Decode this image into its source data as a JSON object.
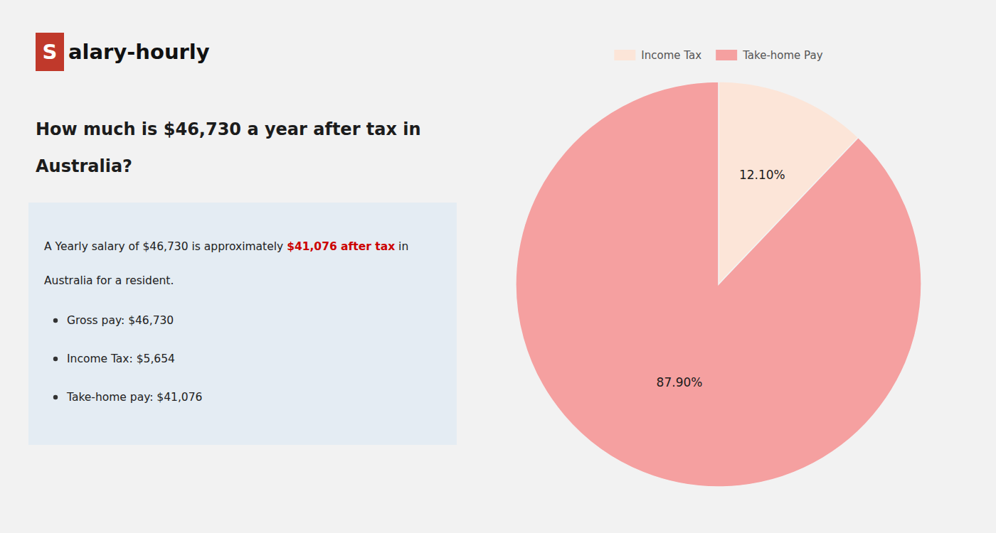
{
  "chart_data": {
    "type": "pie",
    "title": [
      "How much is $46,730 a year after tax in",
      "Australia?"
    ],
    "annotations": [
      {
        "text": "S"
      },
      {
        "text": "alary-hourly"
      },
      {
        "text": "A Yearly salary of $46,730 is approximately "
      },
      {
        "text": "$41,076 after tax",
        "color": "#cc0000"
      },
      {
        "text": " in"
      },
      {
        "text": "Australia for a resident."
      },
      {
        "text": "Gross pay: $46,730"
      },
      {
        "text": "Income Tax: $5,654"
      },
      {
        "text": "Take-home pay: $41,076"
      }
    ],
    "categories": [
      "Income Tax",
      "Take-home Pay"
    ],
    "values": [
      12.1,
      87.9
    ],
    "value_labels": [
      "12.10%",
      "87.90%"
    ],
    "colors": [
      "#fce5d8",
      "#f5a0a0"
    ],
    "data_labels": true,
    "legend": "top"
  }
}
